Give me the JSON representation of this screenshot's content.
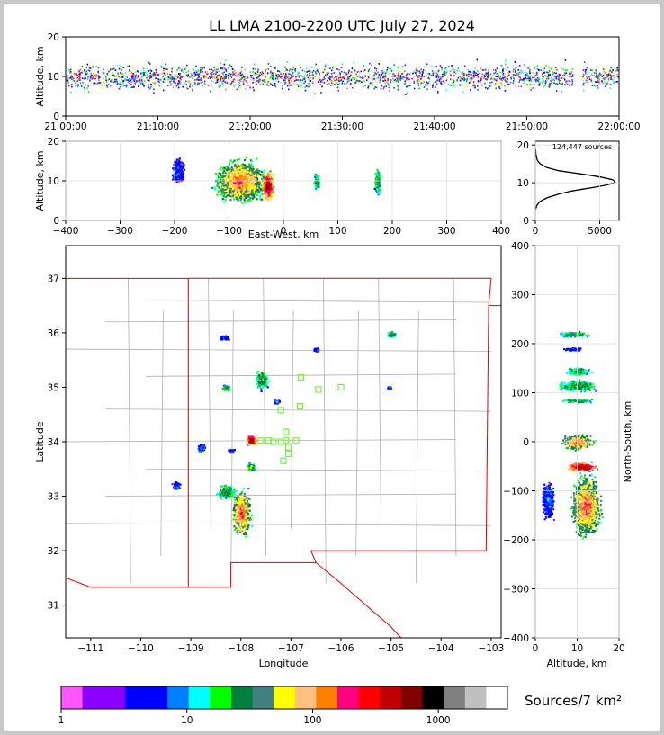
{
  "figure": {
    "title": "LL LMA 2100-2200 UTC July 27, 2024",
    "source_count_label": "124,447 sources",
    "colorbar_label": "Sources/7 km²"
  },
  "colors": {
    "colorbar": [
      "#ff55ff",
      "#8b00ff",
      "#8b00ff",
      "#0000ff",
      "#0000ff",
      "#0080ff",
      "#00ffff",
      "#00ff00",
      "#008040",
      "#408080",
      "#ffff00",
      "#ffc080",
      "#ff8000",
      "#ff0080",
      "#ff0000",
      "#c00000",
      "#800000",
      "#000000",
      "#808080",
      "#c0c0c0",
      "#ffffff"
    ],
    "state_line": "#dd0000",
    "county_line": "#b0b0b0",
    "station_marker": "#77ee44"
  },
  "chart_data": [
    {
      "id": "altitude-time",
      "type": "heatmap",
      "xlabel": "",
      "ylabel": "Altitude, km",
      "xticks": [
        "21:00:00",
        "21:10:00",
        "21:20:00",
        "21:30:00",
        "21:40:00",
        "21:50:00",
        "22:00:00"
      ],
      "xlim": [
        "21:00:00",
        "22:00:00"
      ],
      "ylim": [
        0,
        20
      ],
      "yticks": [
        0,
        10,
        20
      ],
      "core_altitude_km": [
        7,
        13
      ],
      "data_gap": [
        "21:55:00",
        "21:56:00"
      ]
    },
    {
      "id": "altitude-east-west",
      "type": "heatmap",
      "xlabel": "East-West, km",
      "ylabel": "Altitude, km",
      "xlim": [
        -400,
        400
      ],
      "xticks": [
        -400,
        -300,
        -200,
        -100,
        0,
        100,
        200,
        300,
        400
      ],
      "ylim": [
        0,
        20
      ],
      "yticks": [
        0,
        10,
        20
      ],
      "clusters": [
        {
          "x": -80,
          "y": 10,
          "w": 120,
          "h": 14,
          "level": "high"
        },
        {
          "x": -30,
          "y": 9,
          "w": 30,
          "h": 10,
          "level": "peak"
        },
        {
          "x": -195,
          "y": 13,
          "w": 30,
          "h": 8,
          "level": "low"
        },
        {
          "x": 60,
          "y": 10,
          "w": 14,
          "h": 6,
          "level": "mid"
        },
        {
          "x": 172,
          "y": 10,
          "w": 16,
          "h": 9,
          "level": "mid"
        }
      ]
    },
    {
      "id": "altitude-histogram",
      "type": "line",
      "xlim": [
        0,
        6500
      ],
      "xticks": [
        0,
        5000
      ],
      "ylim": [
        0,
        21
      ],
      "yticks": [
        0,
        10,
        20
      ],
      "x": [
        30,
        120,
        350,
        900,
        1800,
        2800,
        3700,
        4600,
        5400,
        6000,
        6200,
        6000,
        5200,
        4200,
        3000,
        1800,
        900,
        380,
        150,
        50,
        15
      ],
      "y": [
        3,
        4,
        5,
        6,
        7,
        7.8,
        8.3,
        8.8,
        9.3,
        9.8,
        10.2,
        10.8,
        11.4,
        12,
        12.6,
        13.2,
        14,
        15,
        16,
        17.5,
        19
      ]
    },
    {
      "id": "plan-view",
      "type": "heatmap",
      "xlabel": "Longitude",
      "ylabel": "Latitude",
      "xlim": [
        -111.5,
        -102.8
      ],
      "ylim": [
        30.4,
        37.6
      ],
      "xticks": [
        -111,
        -110,
        -109,
        -108,
        -107,
        -106,
        -105,
        -104,
        -103
      ],
      "yticks": [
        31,
        32,
        33,
        34,
        35,
        36,
        37
      ],
      "clusters": [
        {
          "lon": -108.0,
          "lat": 32.7,
          "w": 0.5,
          "h": 1.1,
          "level": "high"
        },
        {
          "lon": -107.8,
          "lat": 34.05,
          "w": 0.3,
          "h": 0.3,
          "level": "peak"
        },
        {
          "lon": -108.3,
          "lat": 33.1,
          "w": 0.5,
          "h": 0.35,
          "level": "mid"
        },
        {
          "lon": -107.6,
          "lat": 35.15,
          "w": 0.35,
          "h": 0.45,
          "level": "mid"
        },
        {
          "lon": -108.3,
          "lat": 35.0,
          "w": 0.2,
          "h": 0.15,
          "level": "mid"
        },
        {
          "lon": -108.8,
          "lat": 33.9,
          "w": 0.2,
          "h": 0.2,
          "level": "low"
        },
        {
          "lon": -107.8,
          "lat": 33.55,
          "w": 0.25,
          "h": 0.2,
          "level": "mid"
        },
        {
          "lon": -107.3,
          "lat": 34.75,
          "w": 0.2,
          "h": 0.1,
          "level": "low"
        },
        {
          "lon": -108.35,
          "lat": 35.92,
          "w": 0.3,
          "h": 0.1,
          "level": "low"
        },
        {
          "lon": -105.0,
          "lat": 35.98,
          "w": 0.25,
          "h": 0.15,
          "level": "mid"
        },
        {
          "lon": -106.5,
          "lat": 35.7,
          "w": 0.15,
          "h": 0.1,
          "level": "low"
        },
        {
          "lon": -105.05,
          "lat": 35.0,
          "w": 0.12,
          "h": 0.1,
          "level": "low"
        },
        {
          "lon": -109.3,
          "lat": 33.2,
          "w": 0.2,
          "h": 0.2,
          "level": "low"
        },
        {
          "lon": -108.2,
          "lat": 33.85,
          "w": 0.15,
          "h": 0.1,
          "level": "low"
        }
      ],
      "stations": [
        {
          "lon": -106.8,
          "lat": 35.18
        },
        {
          "lon": -106.45,
          "lat": 34.96
        },
        {
          "lon": -106.0,
          "lat": 35.0
        },
        {
          "lon": -107.2,
          "lat": 34.58
        },
        {
          "lon": -106.82,
          "lat": 34.65
        },
        {
          "lon": -107.1,
          "lat": 34.18
        },
        {
          "lon": -107.1,
          "lat": 34.03
        },
        {
          "lon": -107.2,
          "lat": 34.0
        },
        {
          "lon": -107.35,
          "lat": 34.0
        },
        {
          "lon": -107.45,
          "lat": 34.02
        },
        {
          "lon": -107.6,
          "lat": 34.02
        },
        {
          "lon": -106.9,
          "lat": 34.02
        },
        {
          "lon": -107.05,
          "lat": 33.9
        },
        {
          "lon": -107.05,
          "lat": 33.78
        },
        {
          "lon": -107.15,
          "lat": 33.65
        }
      ]
    },
    {
      "id": "north-south-altitude",
      "type": "heatmap",
      "xlabel": "Altitude, km",
      "ylabel": "North-South, km",
      "xlim": [
        0,
        20
      ],
      "xticks": [
        0,
        10,
        20
      ],
      "ylim": [
        -400,
        400
      ],
      "yticks": [
        -400,
        -300,
        -200,
        -100,
        0,
        100,
        200,
        300,
        400
      ],
      "clusters": [
        {
          "alt": 12,
          "ns": -130,
          "w": 9,
          "h": 160,
          "level": "high"
        },
        {
          "alt": 11,
          "ns": -50,
          "w": 10,
          "h": 25,
          "level": "peak"
        },
        {
          "alt": 10,
          "ns": 0,
          "w": 10,
          "h": 40,
          "level": "high"
        },
        {
          "alt": 10,
          "ns": 115,
          "w": 12,
          "h": 28,
          "level": "mid"
        },
        {
          "alt": 10,
          "ns": 85,
          "w": 10,
          "h": 12,
          "level": "mid"
        },
        {
          "alt": 10,
          "ns": 145,
          "w": 8,
          "h": 20,
          "level": "mid"
        },
        {
          "alt": 9,
          "ns": 220,
          "w": 9,
          "h": 14,
          "level": "mid"
        },
        {
          "alt": 9,
          "ns": 190,
          "w": 6,
          "h": 8,
          "level": "low"
        },
        {
          "alt": 3,
          "ns": -120,
          "w": 4,
          "h": 100,
          "level": "low"
        }
      ]
    },
    {
      "id": "colorbar",
      "type": "table",
      "tick_labels": [
        "1",
        "10",
        "100",
        "1000"
      ]
    }
  ]
}
